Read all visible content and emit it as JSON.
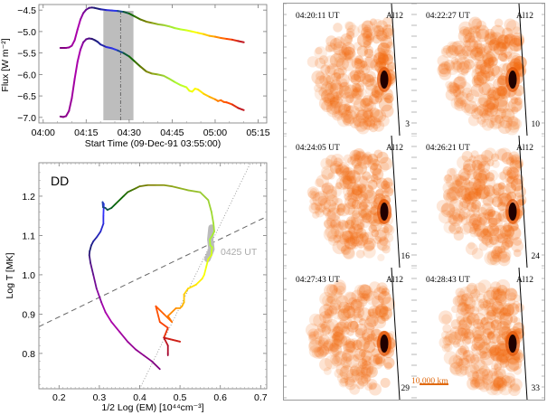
{
  "chart_data": [
    {
      "type": "line",
      "title": "",
      "xlabel": "Start Time (09-Dec-91 03:55:00)",
      "ylabel": "Flux [W m⁻²]",
      "x_tick_labels": [
        "04:00",
        "04:15",
        "04:30",
        "04:45",
        "05:00",
        "05:15"
      ],
      "x_tick_minutes": [
        0,
        15,
        30,
        45,
        60,
        75
      ],
      "xlim_minutes": [
        -1.5,
        78
      ],
      "y_tick_labels": [
        "-4.5",
        "-5.0",
        "-5.5",
        "-6.0",
        "-6.5",
        "-7.0"
      ],
      "y_ticks": [
        -4.5,
        -5.0,
        -5.5,
        -6.0,
        -6.5,
        -7.0
      ],
      "ylim": [
        -7.13,
        -4.37
      ],
      "shaded_interval_minutes": [
        21,
        31.5
      ],
      "marker_line_minutes": 27,
      "series": [
        {
          "name": "upper channel",
          "x_minutes": [
            6,
            8,
            9,
            10,
            11,
            12,
            13,
            14,
            15,
            16,
            17,
            18,
            20,
            22,
            24,
            26,
            28,
            30,
            32,
            34,
            36,
            38,
            40,
            42,
            44,
            46,
            48,
            50,
            52,
            54,
            56,
            58,
            60,
            62,
            64,
            66,
            68,
            70
          ],
          "values": [
            -5.38,
            -5.38,
            -5.37,
            -5.33,
            -5.2,
            -4.95,
            -4.72,
            -4.57,
            -4.49,
            -4.45,
            -4.44,
            -4.45,
            -4.48,
            -4.5,
            -4.51,
            -4.52,
            -4.54,
            -4.58,
            -4.65,
            -4.72,
            -4.77,
            -4.8,
            -4.83,
            -4.85,
            -4.88,
            -4.92,
            -4.95,
            -4.97,
            -5.0,
            -5.03,
            -5.06,
            -5.1,
            -5.12,
            -5.15,
            -5.17,
            -5.19,
            -5.22,
            -5.25
          ]
        },
        {
          "name": "lower channel",
          "x_minutes": [
            6,
            7,
            8,
            9,
            10,
            11,
            12,
            13,
            14,
            15,
            16,
            17,
            18,
            19,
            20,
            22,
            24,
            26,
            28,
            30,
            32,
            34,
            36,
            38,
            40,
            42,
            44,
            46,
            48,
            50,
            51,
            52,
            53,
            54,
            56,
            58,
            60,
            61,
            62,
            63,
            64,
            66,
            68,
            70
          ],
          "values": [
            -6.98,
            -6.99,
            -6.97,
            -6.85,
            -6.55,
            -6.1,
            -5.7,
            -5.42,
            -5.25,
            -5.18,
            -5.16,
            -5.17,
            -5.2,
            -5.24,
            -5.3,
            -5.36,
            -5.39,
            -5.44,
            -5.5,
            -5.58,
            -5.7,
            -5.82,
            -5.93,
            -5.98,
            -6.0,
            -6.03,
            -6.1,
            -6.18,
            -6.25,
            -6.3,
            -6.38,
            -6.4,
            -6.33,
            -6.35,
            -6.45,
            -6.52,
            -6.58,
            -6.62,
            -6.6,
            -6.64,
            -6.65,
            -6.7,
            -6.78,
            -6.83
          ]
        }
      ],
      "color_sequence": [
        "#800080",
        "#b000b0",
        "#1a1a6e",
        "#3030ff",
        "#006400",
        "#808000",
        "#9acd32",
        "#adff2f",
        "#ffff00",
        "#ffa500",
        "#ff4500",
        "#a00030"
      ]
    },
    {
      "type": "line",
      "title": "",
      "label": "DD",
      "xlabel": "1/2 Log (EM) [10⁴⁴cm⁻³]",
      "ylabel": "Log T [MK]",
      "x_tick_labels": [
        "0.2",
        "0.3",
        "0.4",
        "0.5",
        "0.6",
        "0.7"
      ],
      "x_ticks": [
        0.2,
        0.3,
        0.4,
        0.5,
        0.6,
        0.7
      ],
      "xlim": [
        0.15,
        0.715
      ],
      "y_tick_labels": [
        "0.8",
        "0.9",
        "1.0",
        "1.1",
        "1.2"
      ],
      "y_ticks": [
        0.8,
        0.9,
        1.0,
        1.1,
        1.2
      ],
      "ylim": [
        0.71,
        1.285
      ],
      "annotation": "0425 UT",
      "dashed_line": {
        "points": [
          [
            0.15,
            0.868
          ],
          [
            0.715,
            1.148
          ]
        ]
      },
      "dotted_line": {
        "points": [
          [
            0.4,
            0.71
          ],
          [
            0.675,
            1.285
          ]
        ]
      },
      "series": [
        {
          "name": "trajectory",
          "x": [
            0.45,
            0.43,
            0.41,
            0.39,
            0.37,
            0.35,
            0.33,
            0.315,
            0.305,
            0.293,
            0.285,
            0.278,
            0.275,
            0.276,
            0.28,
            0.285,
            0.293,
            0.303,
            0.31,
            0.31,
            0.311,
            0.308,
            0.309,
            0.315,
            0.32,
            0.33,
            0.34,
            0.36,
            0.37,
            0.38,
            0.39,
            0.4,
            0.42,
            0.44,
            0.46,
            0.48,
            0.5,
            0.52,
            0.55,
            0.57,
            0.578,
            0.583,
            0.585,
            0.58,
            0.574,
            0.575,
            0.58,
            0.578,
            0.578,
            0.57,
            0.565,
            0.56,
            0.555,
            0.54,
            0.52,
            0.51,
            0.51,
            0.505,
            0.5,
            0.49,
            0.47,
            0.48,
            0.46,
            0.44,
            0.45,
            0.47,
            0.46,
            0.5,
            0.46,
            0.47,
            0.47,
            0.47
          ],
          "y": [
            0.76,
            0.78,
            0.795,
            0.81,
            0.83,
            0.855,
            0.88,
            0.905,
            0.93,
            0.965,
            1.0,
            1.03,
            1.05,
            1.06,
            1.075,
            1.085,
            1.095,
            1.11,
            1.13,
            1.15,
            1.18,
            1.185,
            1.172,
            1.17,
            1.165,
            1.17,
            1.18,
            1.2,
            1.21,
            1.215,
            1.22,
            1.225,
            1.228,
            1.228,
            1.228,
            1.225,
            1.22,
            1.215,
            1.21,
            1.19,
            1.16,
            1.13,
            1.11,
            1.1,
            1.09,
            1.075,
            1.07,
            1.06,
            1.05,
            1.04,
            1.02,
            1.0,
            0.99,
            0.975,
            0.965,
            0.95,
            0.93,
            0.92,
            0.915,
            0.915,
            0.895,
            0.88,
            0.9,
            0.92,
            0.88,
            0.865,
            0.84,
            0.83,
            0.84,
            0.82,
            0.8,
            0.795
          ]
        }
      ]
    }
  ],
  "image_panels": [
    {
      "time": "04:20:11 UT",
      "filter": "Al12",
      "index": "3"
    },
    {
      "time": "04:22:27 UT",
      "filter": "Al12",
      "index": "10"
    },
    {
      "time": "04:24:05 UT",
      "filter": "Al12",
      "index": "16"
    },
    {
      "time": "04:26:21 UT",
      "filter": "Al12",
      "index": "24"
    },
    {
      "time": "04:27:43 UT",
      "filter": "Al12",
      "index": "29"
    },
    {
      "time": "04:28:43 UT",
      "filter": "Al12",
      "index": "33"
    }
  ],
  "scale_bar": {
    "label": "10,000 km",
    "color": "#e06a10"
  }
}
